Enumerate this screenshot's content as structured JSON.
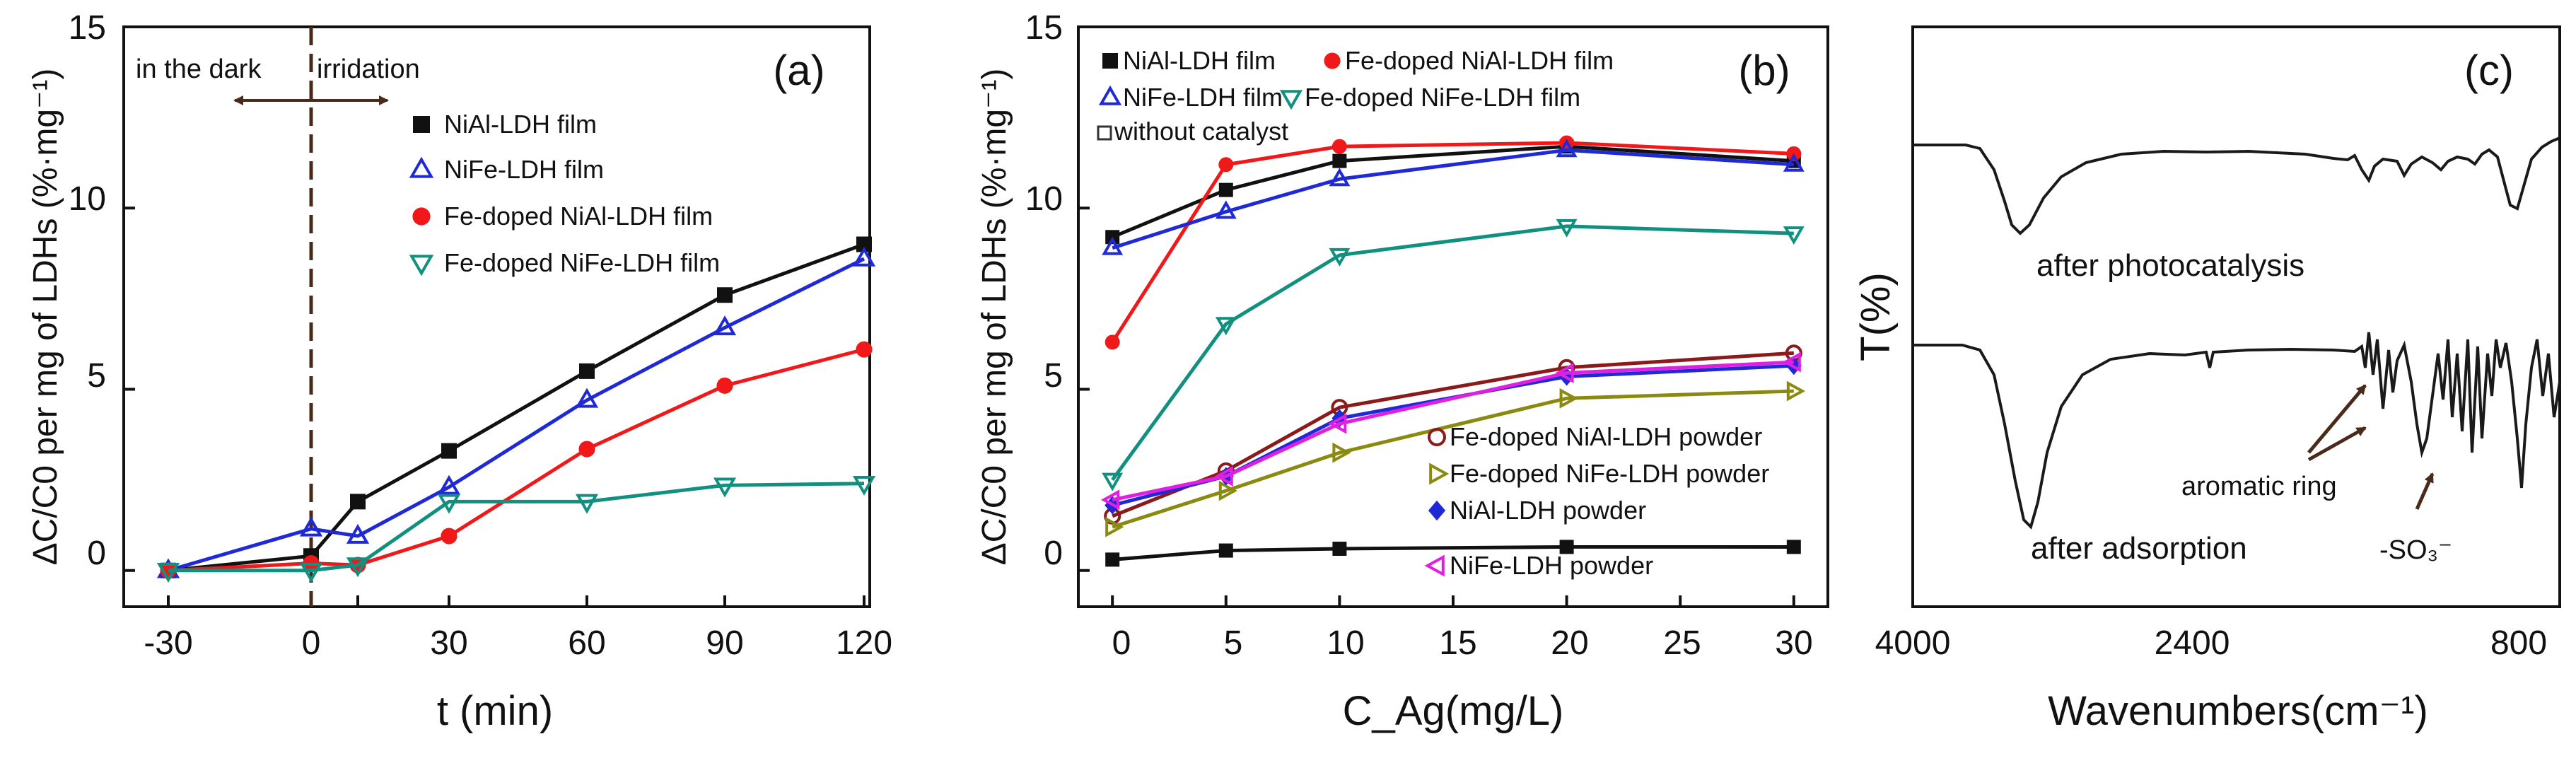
{
  "chart_data": [
    {
      "id": "a",
      "type": "line",
      "panel_label": "(a)",
      "xlabel": "t (min)",
      "ylabel": "ΔC/C0 per mg of LDHs (%·mg⁻¹)",
      "x_categories": [
        "-30",
        "0",
        "10",
        "30",
        "60",
        "90",
        "120"
      ],
      "x": [
        -30,
        0,
        10,
        30,
        60,
        90,
        120
      ],
      "ylim": [
        -1,
        15
      ],
      "yticks": [
        0,
        5,
        10,
        15
      ],
      "annotations": {
        "dark": "in the dark",
        "irradiation": "irridation"
      },
      "series": [
        {
          "name": "NiAl-LDH film",
          "color": "#111111",
          "marker": "square",
          "values": [
            0,
            0.4,
            1.9,
            3.3,
            5.5,
            7.6,
            9.0
          ]
        },
        {
          "name": "NiFe-LDH film",
          "color": "#1f2ad6",
          "marker": "triangle-up",
          "values": [
            0,
            1.15,
            0.95,
            2.3,
            4.7,
            6.7,
            8.6
          ]
        },
        {
          "name": "Fe-doped NiAl-LDH film",
          "color": "#f01818",
          "marker": "circle",
          "values": [
            0,
            0.2,
            0.15,
            0.95,
            3.35,
            5.1,
            6.1
          ]
        },
        {
          "name": "Fe-doped NiFe-LDH film",
          "color": "#119080",
          "marker": "triangle-down",
          "values": [
            0,
            0,
            0.15,
            1.9,
            1.9,
            2.35,
            2.4
          ]
        }
      ]
    },
    {
      "id": "b",
      "type": "line",
      "panel_label": "(b)",
      "xlabel": "C_Ag(mg/L)",
      "ylabel": "ΔC/C0 per mg of LDHs (%·mg⁻¹)",
      "xlim": [
        -1.5,
        31.5
      ],
      "xticks": [
        0,
        5,
        10,
        15,
        20,
        25,
        30
      ],
      "x": [
        0,
        5,
        10,
        20,
        30
      ],
      "ylim": [
        -1,
        15
      ],
      "yticks": [
        0,
        5,
        10,
        15
      ],
      "series": [
        {
          "name": "NiAl-LDH film",
          "color": "#111111",
          "marker": "square",
          "values": [
            9.2,
            10.5,
            11.3,
            11.7,
            11.3
          ]
        },
        {
          "name": "Fe-doped NiAl-LDH film",
          "color": "#f01818",
          "marker": "circle",
          "values": [
            6.3,
            11.2,
            11.7,
            11.8,
            11.5
          ]
        },
        {
          "name": "NiFe-LDH film",
          "color": "#1f2ad6",
          "marker": "triangle-up",
          "values": [
            8.9,
            9.9,
            10.8,
            11.6,
            11.2
          ]
        },
        {
          "name": "Fe-doped NiFe-LDH film",
          "color": "#119080",
          "marker": "triangle-down",
          "values": [
            2.5,
            6.8,
            8.7,
            9.5,
            9.3
          ]
        },
        {
          "name": "without catalyst",
          "color": "#111111",
          "marker": "square",
          "values": [
            0.3,
            0.55,
            0.6,
            0.65,
            0.65
          ]
        },
        {
          "name": "Fe-doped NiAl-LDH powder",
          "color": "#8b1a1a",
          "marker": "circle-open",
          "values": [
            1.5,
            2.75,
            4.5,
            5.6,
            6.0
          ]
        },
        {
          "name": "Fe-doped NiFe-LDH powder",
          "color": "#8a8a10",
          "marker": "triangle-right-open",
          "values": [
            1.2,
            2.2,
            3.25,
            4.75,
            4.95
          ]
        },
        {
          "name": "NiAl-LDH powder",
          "color": "#1f2ad6",
          "marker": "diamond",
          "values": [
            1.8,
            2.6,
            4.2,
            5.35,
            5.65
          ]
        },
        {
          "name": "NiFe-LDH powder",
          "color": "#e020e0",
          "marker": "triangle-left-open",
          "values": [
            1.95,
            2.6,
            4.05,
            5.45,
            5.75
          ]
        }
      ]
    },
    {
      "id": "c",
      "type": "line",
      "panel_label": "(c)",
      "xlabel": "Wavenumbers(cm⁻¹)",
      "ylabel": "T(%)",
      "xticks": [
        "4000",
        "2400",
        "800"
      ],
      "spectra": [
        {
          "name": "after photocatalysis"
        },
        {
          "name": "after adsorption"
        }
      ],
      "annotations": {
        "aromatic": "aromatic ring",
        "sulfonate": "-SO₃⁻"
      }
    }
  ]
}
